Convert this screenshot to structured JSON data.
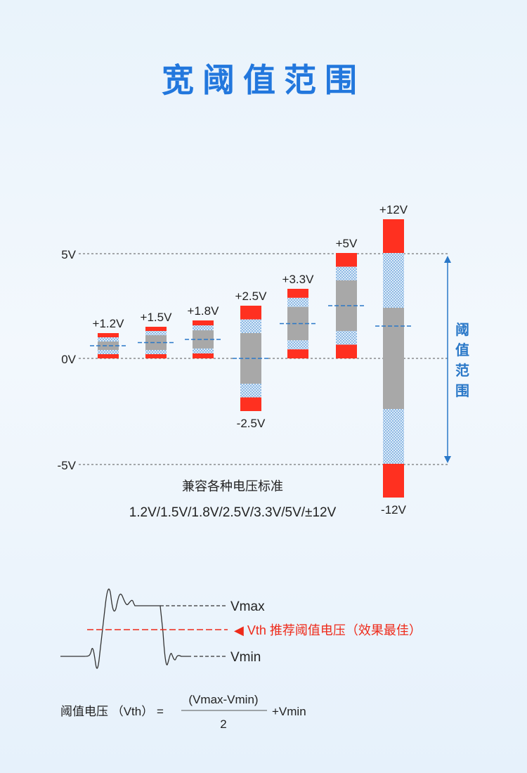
{
  "title": "宽阈值范围",
  "axis": {
    "ticks": [
      {
        "label": "5V",
        "value": 5
      },
      {
        "label": "0V",
        "value": 0
      },
      {
        "label": "-5V",
        "value": -5
      }
    ],
    "range_label": "阈值范围"
  },
  "standards": [
    {
      "top": "+1.2V",
      "max": 1.2,
      "min": 0,
      "bottom": ""
    },
    {
      "top": "+1.5V",
      "max": 1.5,
      "min": 0,
      "bottom": ""
    },
    {
      "top": "+1.8V",
      "max": 1.8,
      "min": 0,
      "bottom": ""
    },
    {
      "top": "+2.5V",
      "max": 2.5,
      "min": -2.5,
      "bottom": "-2.5V"
    },
    {
      "top": "+3.3V",
      "max": 3.3,
      "min": 0,
      "bottom": ""
    },
    {
      "top": "+5V",
      "max": 5,
      "min": 0,
      "bottom": ""
    },
    {
      "top": "+12V",
      "max": 12,
      "min": -12,
      "bottom": "-12V"
    }
  ],
  "compat_caption": "兼容各种电压标准",
  "compat_list": "1.2V/1.5V/1.8V/2.5V/3.3V/5V/±12V",
  "waveform": {
    "vmax": "Vmax",
    "vth": "◀ Vth  推荐阈值电压（效果最佳）",
    "vmin": "Vmin"
  },
  "formula": {
    "lhs": "阈值电压 （Vth） =",
    "numerator": "(Vmax-Vmin)",
    "denominator": "2",
    "rhs": "+Vmin"
  },
  "colors": {
    "title": "#2277dd",
    "red": "#ff3020",
    "gray": "#a8a8a8",
    "hatch": "#9dc4e8",
    "dash_blue": "#2a78c8",
    "vth_red": "#ee2a1a"
  }
}
